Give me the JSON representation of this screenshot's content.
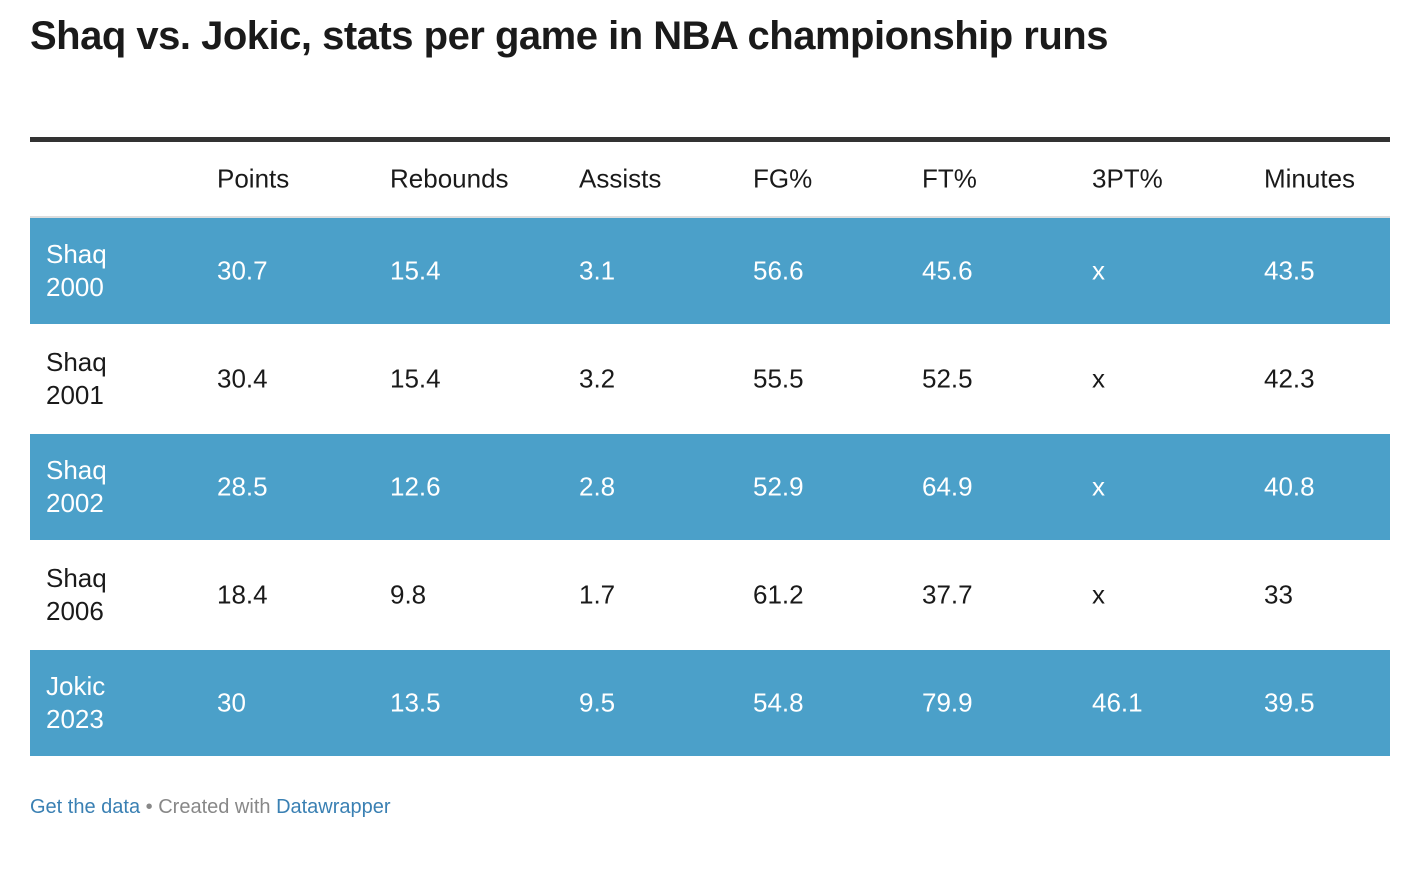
{
  "header": {
    "title": "Shaq vs. Jokic, stats per game in NBA championship runs"
  },
  "table": {
    "columns": [
      "Points",
      "Rebounds",
      "Assists",
      "FG%",
      "FT%",
      "3PT%",
      "Minutes"
    ],
    "rows": [
      [
        "Shaq 2000",
        "30.7",
        "15.4",
        "3.1",
        "56.6",
        "45.6",
        "x",
        "43.5"
      ],
      [
        "Shaq 2001",
        "30.4",
        "15.4",
        "3.2",
        "55.5",
        "52.5",
        "x",
        "42.3"
      ],
      [
        "Shaq 2002",
        "28.5",
        "12.6",
        "2.8",
        "52.9",
        "64.9",
        "x",
        "40.8"
      ],
      [
        "Shaq 2006",
        "18.4",
        "9.8",
        "1.7",
        "61.2",
        "37.7",
        "x",
        "33"
      ],
      [
        "Jokic 2023",
        "30",
        "13.5",
        "9.5",
        "54.8",
        "79.9",
        "46.1",
        "39.5"
      ]
    ]
  },
  "footer": {
    "get_data": "Get the data",
    "separator": "•",
    "created_with": "Created with",
    "tool": "Datawrapper"
  }
}
